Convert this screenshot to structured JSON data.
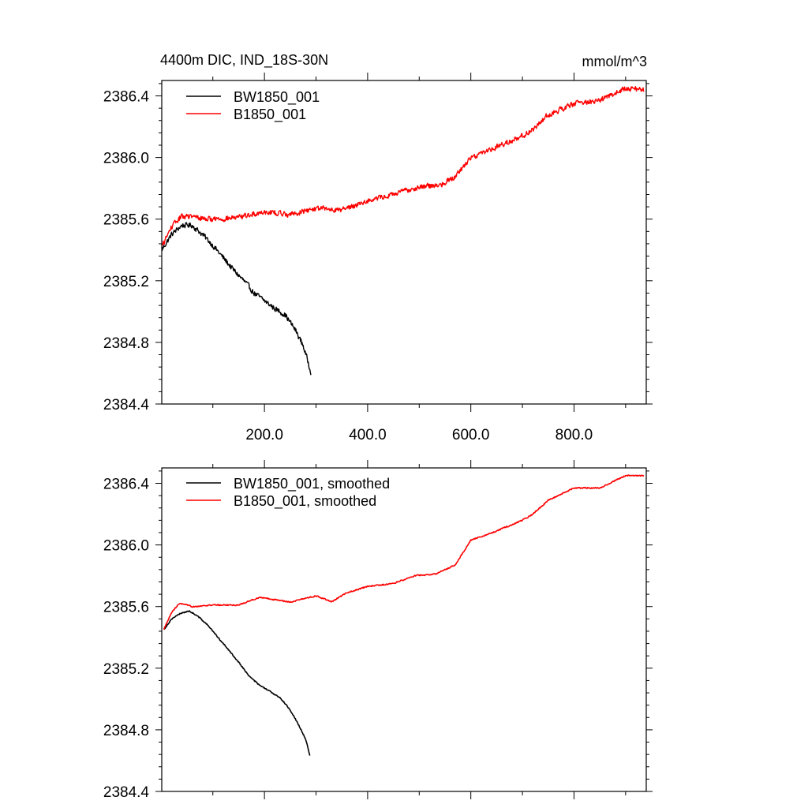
{
  "figure": {
    "title_left": "4400m DIC, IND_18S-30N",
    "title_right": "mmol/m^3"
  },
  "chart_data": [
    {
      "type": "line",
      "panel": "top",
      "title": "4400m DIC, IND_18S-30N",
      "units": "mmol/m^3",
      "xlim": [
        1,
        940
      ],
      "ylim": [
        2384.4,
        2386.5
      ],
      "xticks": [
        200,
        400,
        600,
        800
      ],
      "xtick_labels": [
        "200.0",
        "400.0",
        "600.0",
        "800.0"
      ],
      "yticks": [
        2384.4,
        2384.8,
        2385.2,
        2385.6,
        2386.0,
        2386.4
      ],
      "ytick_labels": [
        "2384.4",
        "2384.8",
        "2385.2",
        "2385.6",
        "2386.0",
        "2386.4"
      ],
      "legend": "top-left",
      "series": [
        {
          "name": "BW1850_001",
          "color": "#000000",
          "noise": 0.018,
          "points": [
            [
              1,
              2385.4
            ],
            [
              20,
              2385.5
            ],
            [
              40,
              2385.56
            ],
            [
              60,
              2385.56
            ],
            [
              80,
              2385.5
            ],
            [
              100,
              2385.43
            ],
            [
              120,
              2385.35
            ],
            [
              140,
              2385.27
            ],
            [
              160,
              2385.2
            ],
            [
              180,
              2385.12
            ],
            [
              200,
              2385.07
            ],
            [
              220,
              2385.02
            ],
            [
              240,
              2384.98
            ],
            [
              260,
              2384.88
            ],
            [
              275,
              2384.78
            ],
            [
              290,
              2384.61
            ]
          ]
        },
        {
          "name": "B1850_001",
          "color": "#ff0000",
          "noise": 0.018,
          "points": [
            [
              1,
              2385.42
            ],
            [
              20,
              2385.55
            ],
            [
              40,
              2385.62
            ],
            [
              100,
              2385.6
            ],
            [
              150,
              2385.61
            ],
            [
              200,
              2385.65
            ],
            [
              250,
              2385.63
            ],
            [
              300,
              2385.67
            ],
            [
              350,
              2385.66
            ],
            [
              400,
              2385.72
            ],
            [
              450,
              2385.76
            ],
            [
              500,
              2385.81
            ],
            [
              540,
              2385.82
            ],
            [
              570,
              2385.88
            ],
            [
              600,
              2386.0
            ],
            [
              650,
              2386.07
            ],
            [
              700,
              2386.14
            ],
            [
              720,
              2386.18
            ],
            [
              750,
              2386.28
            ],
            [
              800,
              2386.35
            ],
            [
              850,
              2386.37
            ],
            [
              900,
              2386.45
            ],
            [
              935,
              2386.44
            ]
          ]
        }
      ]
    },
    {
      "type": "line",
      "panel": "bottom",
      "xlim": [
        1,
        940
      ],
      "ylim": [
        2384.4,
        2386.5
      ],
      "xticks": [
        200,
        400,
        600,
        800
      ],
      "yticks": [
        2384.4,
        2384.8,
        2385.2,
        2385.6,
        2386.0,
        2386.4
      ],
      "ytick_labels": [
        "2384.4",
        "2384.8",
        "2385.2",
        "2385.6",
        "2386.0",
        "2386.4"
      ],
      "legend": "top-left",
      "series": [
        {
          "name": "BW1850_001, smoothed",
          "color": "#000000",
          "noise": 0.004,
          "points": [
            [
              5,
              2385.45
            ],
            [
              20,
              2385.52
            ],
            [
              40,
              2385.56
            ],
            [
              55,
              2385.57
            ],
            [
              70,
              2385.54
            ],
            [
              90,
              2385.48
            ],
            [
              110,
              2385.4
            ],
            [
              130,
              2385.32
            ],
            [
              150,
              2385.24
            ],
            [
              170,
              2385.15
            ],
            [
              190,
              2385.09
            ],
            [
              210,
              2385.05
            ],
            [
              230,
              2385.01
            ],
            [
              250,
              2384.93
            ],
            [
              265,
              2384.84
            ],
            [
              280,
              2384.74
            ],
            [
              288,
              2384.63
            ]
          ]
        },
        {
          "name": "B1850_001, smoothed",
          "color": "#ff0000",
          "noise": 0.004,
          "points": [
            [
              5,
              2385.45
            ],
            [
              20,
              2385.56
            ],
            [
              35,
              2385.62
            ],
            [
              60,
              2385.6
            ],
            [
              100,
              2385.61
            ],
            [
              150,
              2385.61
            ],
            [
              190,
              2385.66
            ],
            [
              250,
              2385.63
            ],
            [
              300,
              2385.67
            ],
            [
              330,
              2385.63
            ],
            [
              360,
              2385.69
            ],
            [
              400,
              2385.73
            ],
            [
              450,
              2385.75
            ],
            [
              490,
              2385.8
            ],
            [
              530,
              2385.81
            ],
            [
              570,
              2385.87
            ],
            [
              600,
              2386.03
            ],
            [
              650,
              2386.09
            ],
            [
              700,
              2386.16
            ],
            [
              720,
              2386.2
            ],
            [
              750,
              2386.29
            ],
            [
              800,
              2386.37
            ],
            [
              850,
              2386.37
            ],
            [
              900,
              2386.45
            ],
            [
              935,
              2386.45
            ]
          ]
        }
      ]
    }
  ]
}
